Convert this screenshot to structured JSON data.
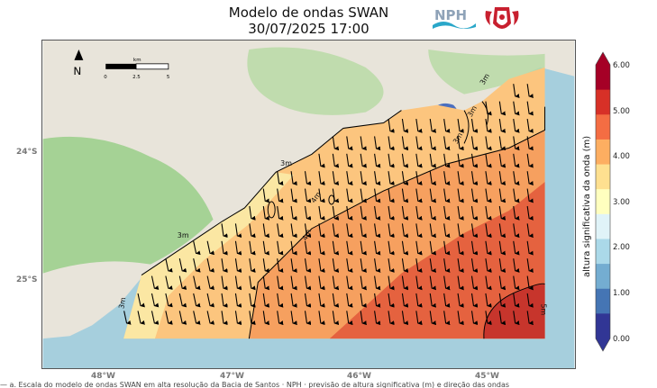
{
  "title": {
    "line1": "Modelo de ondas SWAN",
    "line2": "30/07/2025 17:00"
  },
  "logo_nph": {
    "text": "NPH"
  },
  "map": {
    "north_label": "N",
    "scale_unit": "km",
    "scale_ticks": [
      "0",
      "2.5",
      "5"
    ],
    "lat_labels": [
      "24°S",
      "25°S"
    ],
    "lon_labels": [
      "48°W",
      "47°W",
      "46°W",
      "45°W"
    ],
    "contour_labels": [
      "3m",
      "3m",
      "3m",
      "3m",
      "3m",
      "3m",
      "4m",
      "4m",
      "5m"
    ]
  },
  "colorbar": {
    "title": "altura significativa da onda (m)",
    "ticks": [
      "6.00",
      "5.00",
      "4.00",
      "3.00",
      "2.00",
      "1.00",
      "0.00"
    ],
    "colors": [
      "#313695",
      "#4575b4",
      "#74add1",
      "#abd9e9",
      "#e0f3f8",
      "#ffffbf",
      "#fee090",
      "#fdae61",
      "#f46d43",
      "#d73027",
      "#a50026"
    ]
  },
  "footer": {
    "text": "— a. Escala do modelo de ondas SWAN em alta resolução da Bacia de Santos · NPH · previsão de altura significativa (m) e direção das ondas"
  }
}
